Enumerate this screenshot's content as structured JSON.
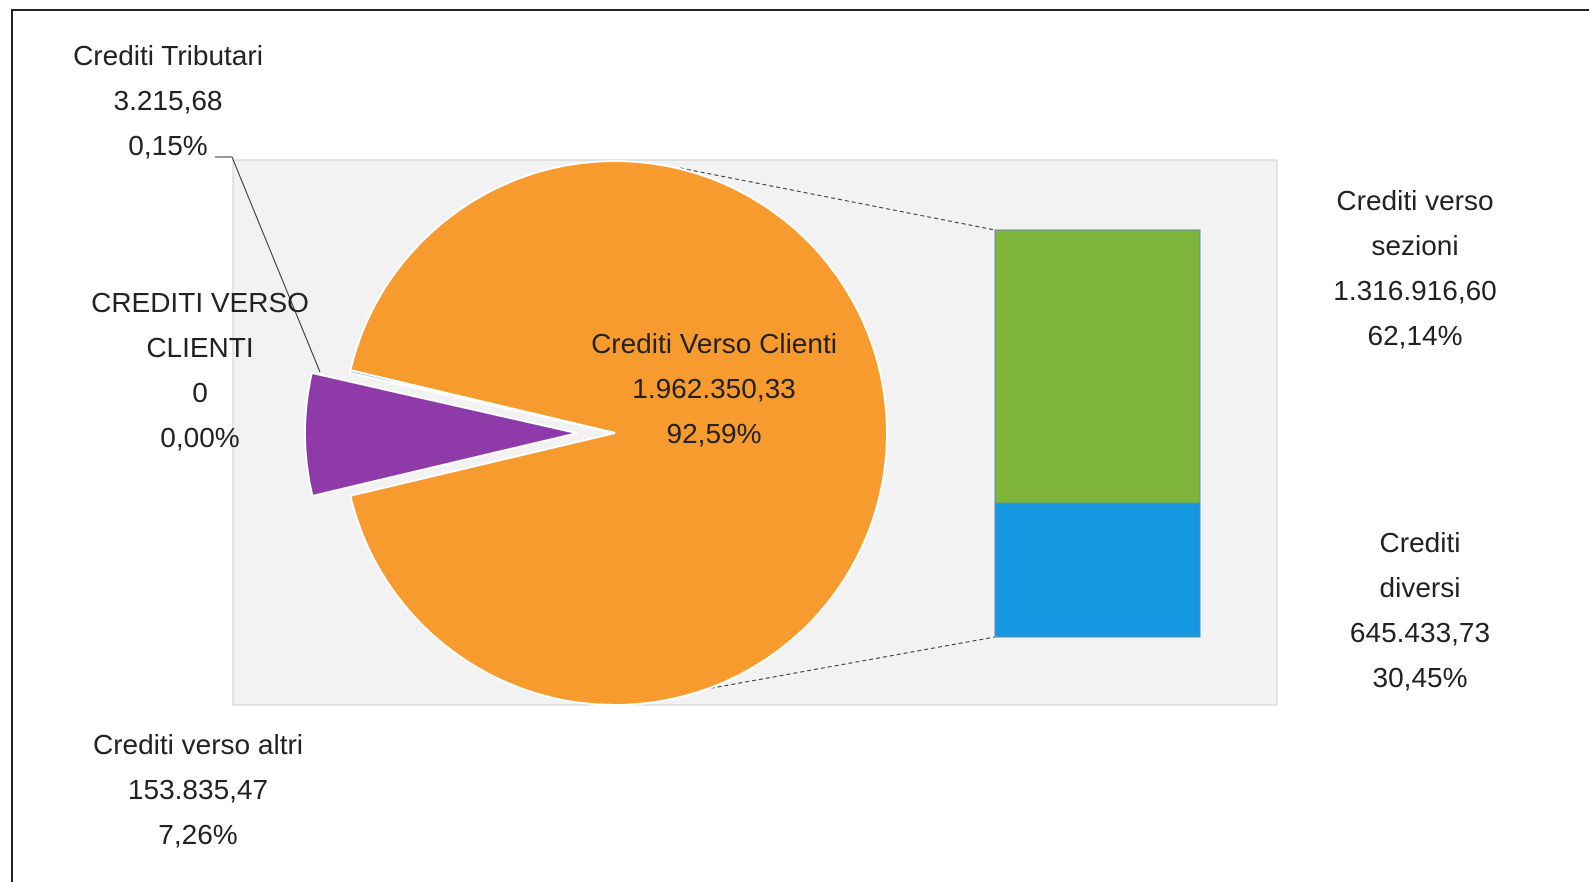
{
  "chart_data": {
    "type": "bar_of_pie",
    "pie": {
      "categories": [
        "Crediti Verso Clienti",
        "Crediti verso altri",
        "Crediti Tributari",
        "CREDITI VERSO CLIENTI"
      ],
      "values": [
        1962350.33,
        153835.47,
        3215.68,
        0
      ],
      "value_labels": [
        "1.962.350,33",
        "153.835,47",
        "3.215,68",
        "0"
      ],
      "percents": [
        92.59,
        7.26,
        0.15,
        0
      ],
      "percent_labels": [
        "92,59%",
        "7,26%",
        "0,15%",
        "0,00%"
      ],
      "colors": [
        "#f89b2f",
        "#8f3aa9",
        "#4f81bd",
        "#c0504d"
      ]
    },
    "bar": {
      "categories": [
        "Crediti verso sezioni",
        "Crediti diversi"
      ],
      "values": [
        1316916.6,
        645433.73
      ],
      "value_labels": [
        "1.316.916,60",
        "645.433,73"
      ],
      "percents": [
        62.14,
        30.45
      ],
      "percent_labels": [
        "62,14%",
        "30,45%"
      ],
      "colors": [
        "#7db53b",
        "#1597e1"
      ]
    }
  }
}
